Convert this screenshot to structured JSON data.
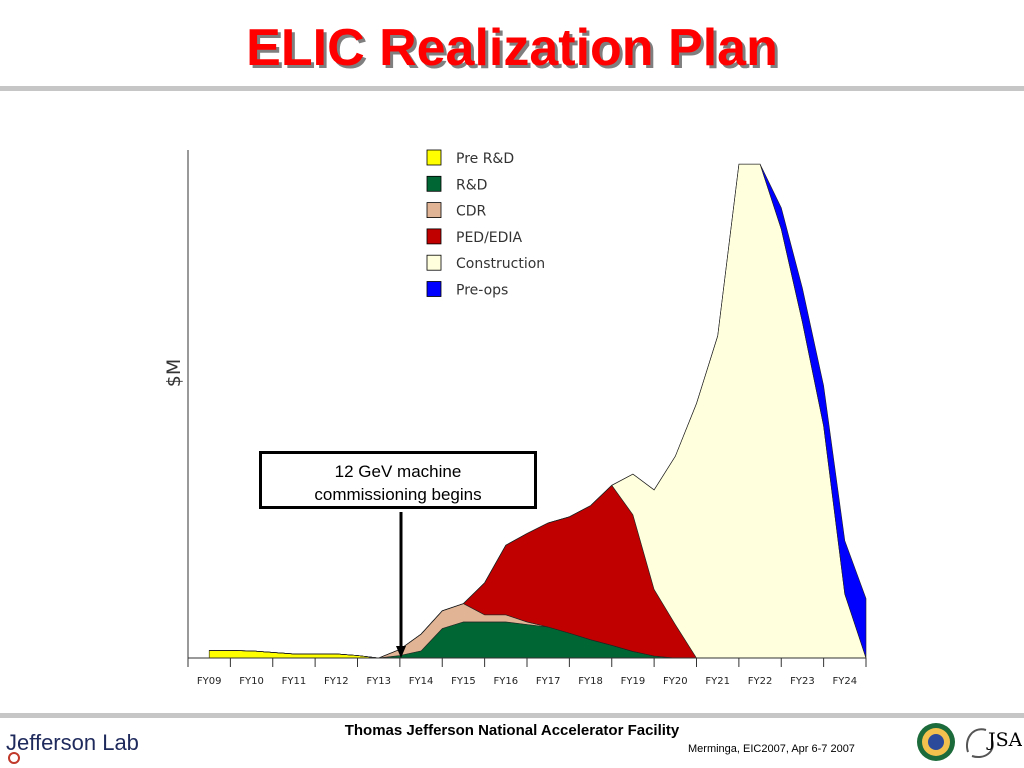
{
  "slide": {
    "title": "ELIC Realization Plan",
    "footer_center": "Thomas Jefferson National Accelerator Facility",
    "footer_credit": "Merminga, EIC2007, Apr 6-7 2007",
    "logo_left_text": "Jefferson Lab",
    "logo_right_text": "JSA"
  },
  "annotation": {
    "line1": "12 GeV machine",
    "line2": "commissioning begins",
    "points_to": "FY13"
  },
  "colors": {
    "title_red": "#ff0000",
    "pre_rd": "#ffff00",
    "rd": "#006633",
    "cdr": "#e0b494",
    "ped_edia": "#c00000",
    "construction": "#ffffdd",
    "pre_ops": "#0000ff"
  },
  "chart_data": {
    "type": "area",
    "stacked": true,
    "ylabel": "$M",
    "xlabel": "",
    "categories": [
      "FY09",
      "FY10",
      "FY11",
      "FY12",
      "FY13",
      "FY14",
      "FY15",
      "FY16",
      "FY17",
      "FY18",
      "FY19",
      "FY20",
      "FY21",
      "FY22",
      "FY23",
      "FY24"
    ],
    "x": [
      0,
      0.5,
      1,
      1.5,
      2,
      2.5,
      3,
      3.5,
      4,
      4.5,
      5,
      5.5,
      6,
      6.5,
      7,
      7.5,
      8,
      8.5,
      9,
      9.5,
      10,
      10.5,
      11,
      11.5,
      12,
      12.5,
      13,
      13.5,
      14,
      14.5,
      15,
      15.5
    ],
    "ylim": [
      0,
      100
    ],
    "legend": {
      "position": "top-center"
    },
    "grid": false,
    "series": [
      {
        "name": "Pre R&D",
        "color": "#ffff00",
        "values": [
          1.5,
          1.5,
          1.4,
          1.1,
          0.8,
          0.8,
          0.8,
          0.5,
          0,
          0,
          0,
          0,
          0,
          0,
          0,
          0,
          0,
          0,
          0,
          0,
          0,
          0,
          0,
          0,
          0,
          0,
          0,
          0,
          0,
          0,
          0,
          0
        ]
      },
      {
        "name": "R&D",
        "color": "#006633",
        "values": [
          0,
          0,
          0,
          0,
          0,
          0,
          0,
          0,
          0,
          0.5,
          1.4,
          5.8,
          7.1,
          7.1,
          7.1,
          6.6,
          6.1,
          4.9,
          3.6,
          2.5,
          1.3,
          0.4,
          0,
          0,
          0,
          0,
          0,
          0,
          0,
          0,
          0,
          0
        ]
      },
      {
        "name": "CDR",
        "color": "#e0b494",
        "values": [
          0,
          0,
          0,
          0,
          0,
          0,
          0,
          0,
          0,
          1.2,
          3.3,
          3.5,
          3.6,
          1.4,
          1.4,
          0.5,
          0,
          0,
          0,
          0,
          0,
          0,
          0,
          0,
          0,
          0,
          0,
          0,
          0,
          0,
          0,
          0
        ]
      },
      {
        "name": "PED/EDIA",
        "color": "#c00000",
        "values": [
          0,
          0,
          0,
          0,
          0,
          0,
          0,
          0,
          0,
          0,
          0,
          0,
          0,
          6.3,
          13.7,
          17.4,
          20.5,
          22.9,
          26.4,
          31.5,
          26.9,
          13.1,
          6.6,
          0,
          0,
          0,
          0,
          0,
          0,
          0,
          0,
          0
        ]
      },
      {
        "name": "Construction",
        "color": "#ffffdd",
        "values": [
          0,
          0,
          0,
          0,
          0,
          0,
          0,
          0,
          0,
          0,
          0,
          0,
          0,
          0,
          0,
          0,
          0,
          0,
          0,
          0,
          8.0,
          19.6,
          33.1,
          50.1,
          63.4,
          97.2,
          97.2,
          84.4,
          66.1,
          45.7,
          12.6,
          0
        ]
      },
      {
        "name": "Pre-ops",
        "color": "#0000ff",
        "values": [
          0,
          0,
          0,
          0,
          0,
          0,
          0,
          0,
          0,
          0,
          0,
          0,
          0,
          0,
          0,
          0,
          0,
          0,
          0,
          0,
          0,
          0,
          0,
          0,
          0,
          0,
          0,
          4.2,
          6.7,
          7.9,
          10.5,
          11.7
        ]
      }
    ]
  }
}
